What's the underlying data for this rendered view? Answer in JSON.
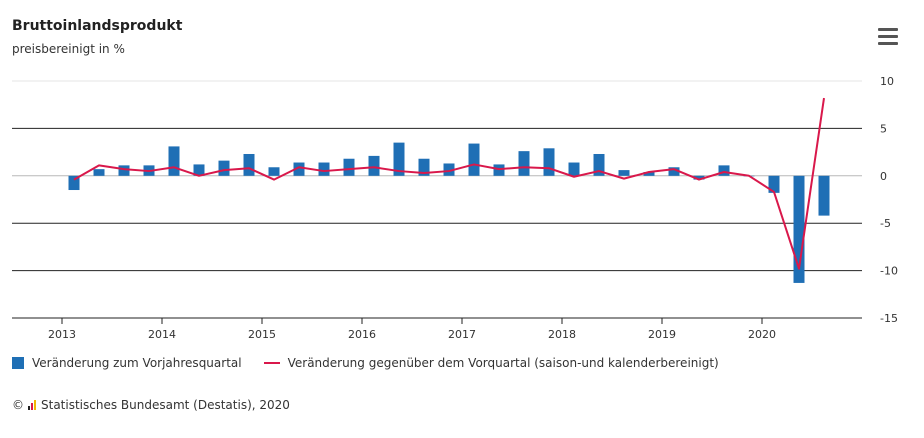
{
  "title": "Bruttoinlandsprodukt",
  "subtitle": "preisbereinigt in %",
  "menu_icon": "hamburger-menu-icon",
  "colors": {
    "bar": "#1f6fb5",
    "line": "#d9184b",
    "grid": "#222222",
    "grid_light": "#e6e6e6",
    "zero": "#b8b8b8"
  },
  "legend": {
    "bar_label": "Veränderung zum Vorjahresquartal",
    "line_label": "Veränderung gegenüber dem Vorquartal (saison-und kalenderbereinigt)"
  },
  "credits": {
    "symbol": "©",
    "text": "Statistisches Bundesamt (Destatis), 2020"
  },
  "chart_data": {
    "type": "bar+line",
    "x_tick_labels": [
      "2013",
      "2014",
      "2015",
      "2016",
      "2017",
      "2018",
      "2019",
      "2020"
    ],
    "y_ticks": [
      10,
      5,
      0,
      -5,
      -10,
      -15
    ],
    "ylim": [
      -15,
      10
    ],
    "categories": [
      "2013 Q1",
      "2013 Q2",
      "2013 Q3",
      "2013 Q4",
      "2014 Q1",
      "2014 Q2",
      "2014 Q3",
      "2014 Q4",
      "2015 Q1",
      "2015 Q2",
      "2015 Q3",
      "2015 Q4",
      "2016 Q1",
      "2016 Q2",
      "2016 Q3",
      "2016 Q4",
      "2017 Q1",
      "2017 Q2",
      "2017 Q3",
      "2017 Q4",
      "2018 Q1",
      "2018 Q2",
      "2018 Q3",
      "2018 Q4",
      "2019 Q1",
      "2019 Q2",
      "2019 Q3",
      "2019 Q4",
      "2020 Q1",
      "2020 Q2",
      "2020 Q3"
    ],
    "series": [
      {
        "name": "Veränderung zum Vorjahresquartal",
        "kind": "bar",
        "values": [
          -1.5,
          0.7,
          1.1,
          1.1,
          3.1,
          1.2,
          1.6,
          2.3,
          0.9,
          1.4,
          1.4,
          1.8,
          2.1,
          3.5,
          1.8,
          1.3,
          3.4,
          1.2,
          2.6,
          2.9,
          1.4,
          2.3,
          0.6,
          0.4,
          0.9,
          -0.4,
          1.1,
          0.0,
          -1.8,
          -11.3,
          -4.2
        ]
      },
      {
        "name": "Veränderung gegenüber dem Vorquartal (saison-und kalenderbereinigt)",
        "kind": "line",
        "values": [
          -0.4,
          1.1,
          0.7,
          0.5,
          0.9,
          0.0,
          0.6,
          0.8,
          -0.4,
          0.9,
          0.5,
          0.7,
          0.9,
          0.5,
          0.3,
          0.5,
          1.2,
          0.7,
          0.9,
          0.8,
          -0.1,
          0.5,
          -0.3,
          0.4,
          0.7,
          -0.4,
          0.4,
          0.0,
          -1.7,
          -9.8,
          8.2
        ]
      }
    ]
  }
}
